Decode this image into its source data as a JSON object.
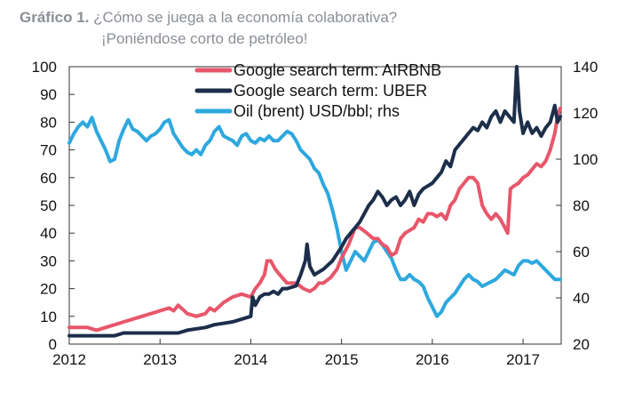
{
  "header": {
    "label": "Gráfico 1.",
    "line1": "¿Cómo se juega a la economía colaborativa?",
    "line2": "¡Poniéndose corto de petróleo!"
  },
  "chart_data": {
    "type": "line",
    "x_ticks": [
      "2012",
      "2013",
      "2014",
      "2015",
      "2016",
      "2017"
    ],
    "xlim": [
      2012.0,
      2017.42
    ],
    "y_left": {
      "ticks": [
        "0",
        "10",
        "20",
        "30",
        "40",
        "50",
        "60",
        "70",
        "80",
        "90",
        "100"
      ],
      "ylim": [
        0,
        100
      ]
    },
    "y_right": {
      "ticks": [
        "20",
        "40",
        "60",
        "80",
        "100",
        "120",
        "140"
      ],
      "ylim": [
        20,
        140
      ]
    },
    "series": [
      {
        "name": "Google search term: AIRBNB",
        "axis": "left",
        "color": "#e8566a",
        "points": [
          [
            2012.0,
            6
          ],
          [
            2012.2,
            6
          ],
          [
            2012.3,
            5
          ],
          [
            2012.4,
            6
          ],
          [
            2012.5,
            7
          ],
          [
            2012.6,
            8
          ],
          [
            2012.8,
            10
          ],
          [
            2012.9,
            11
          ],
          [
            2013.0,
            12
          ],
          [
            2013.1,
            13
          ],
          [
            2013.15,
            12
          ],
          [
            2013.2,
            14
          ],
          [
            2013.3,
            11
          ],
          [
            2013.4,
            10
          ],
          [
            2013.5,
            11
          ],
          [
            2013.55,
            13
          ],
          [
            2013.6,
            12
          ],
          [
            2013.7,
            15
          ],
          [
            2013.8,
            17
          ],
          [
            2013.9,
            18
          ],
          [
            2014.0,
            17
          ],
          [
            2014.05,
            20
          ],
          [
            2014.1,
            22
          ],
          [
            2014.15,
            25
          ],
          [
            2014.18,
            30
          ],
          [
            2014.22,
            30
          ],
          [
            2014.27,
            27
          ],
          [
            2014.32,
            25
          ],
          [
            2014.4,
            22
          ],
          [
            2014.5,
            22
          ],
          [
            2014.58,
            20
          ],
          [
            2014.65,
            19
          ],
          [
            2014.7,
            20
          ],
          [
            2014.75,
            22
          ],
          [
            2014.8,
            22
          ],
          [
            2014.88,
            24
          ],
          [
            2014.95,
            27
          ],
          [
            2015.0,
            31
          ],
          [
            2015.08,
            36
          ],
          [
            2015.15,
            42
          ],
          [
            2015.2,
            42
          ],
          [
            2015.28,
            40
          ],
          [
            2015.35,
            38
          ],
          [
            2015.4,
            38
          ],
          [
            2015.45,
            36
          ],
          [
            2015.5,
            35
          ],
          [
            2015.55,
            32
          ],
          [
            2015.6,
            33
          ],
          [
            2015.65,
            38
          ],
          [
            2015.7,
            40
          ],
          [
            2015.8,
            42
          ],
          [
            2015.85,
            45
          ],
          [
            2015.9,
            44
          ],
          [
            2015.95,
            47
          ],
          [
            2016.0,
            47
          ],
          [
            2016.05,
            46
          ],
          [
            2016.1,
            47
          ],
          [
            2016.15,
            45
          ],
          [
            2016.2,
            50
          ],
          [
            2016.25,
            52
          ],
          [
            2016.3,
            56
          ],
          [
            2016.35,
            58
          ],
          [
            2016.4,
            60
          ],
          [
            2016.45,
            60
          ],
          [
            2016.5,
            58
          ],
          [
            2016.55,
            50
          ],
          [
            2016.6,
            47
          ],
          [
            2016.65,
            45
          ],
          [
            2016.7,
            47
          ],
          [
            2016.75,
            45
          ],
          [
            2016.8,
            42
          ],
          [
            2016.83,
            40
          ],
          [
            2016.86,
            56
          ],
          [
            2016.9,
            57
          ],
          [
            2016.95,
            58
          ],
          [
            2017.0,
            60
          ],
          [
            2017.05,
            61
          ],
          [
            2017.1,
            63
          ],
          [
            2017.15,
            65
          ],
          [
            2017.2,
            64
          ],
          [
            2017.25,
            66
          ],
          [
            2017.3,
            70
          ],
          [
            2017.35,
            76
          ],
          [
            2017.38,
            82
          ],
          [
            2017.41,
            85
          ]
        ]
      },
      {
        "name": "Google search term: UBER",
        "axis": "left",
        "color": "#1c2e4a",
        "points": [
          [
            2012.0,
            3
          ],
          [
            2012.5,
            3
          ],
          [
            2012.6,
            4
          ],
          [
            2013.0,
            4
          ],
          [
            2013.2,
            4
          ],
          [
            2013.3,
            5
          ],
          [
            2013.5,
            6
          ],
          [
            2013.6,
            7
          ],
          [
            2013.8,
            8
          ],
          [
            2013.9,
            9
          ],
          [
            2014.0,
            10
          ],
          [
            2014.02,
            17
          ],
          [
            2014.05,
            14
          ],
          [
            2014.1,
            17
          ],
          [
            2014.15,
            18
          ],
          [
            2014.2,
            18
          ],
          [
            2014.25,
            19
          ],
          [
            2014.3,
            18
          ],
          [
            2014.35,
            20
          ],
          [
            2014.4,
            20
          ],
          [
            2014.5,
            21
          ],
          [
            2014.55,
            25
          ],
          [
            2014.6,
            30
          ],
          [
            2014.62,
            36
          ],
          [
            2014.65,
            28
          ],
          [
            2014.7,
            25
          ],
          [
            2014.8,
            27
          ],
          [
            2014.9,
            30
          ],
          [
            2015.0,
            35
          ],
          [
            2015.05,
            38
          ],
          [
            2015.1,
            40
          ],
          [
            2015.15,
            42
          ],
          [
            2015.2,
            44
          ],
          [
            2015.25,
            47
          ],
          [
            2015.3,
            50
          ],
          [
            2015.35,
            52
          ],
          [
            2015.4,
            55
          ],
          [
            2015.45,
            53
          ],
          [
            2015.5,
            50
          ],
          [
            2015.55,
            52
          ],
          [
            2015.6,
            53
          ],
          [
            2015.65,
            50
          ],
          [
            2015.7,
            52
          ],
          [
            2015.75,
            55
          ],
          [
            2015.8,
            50
          ],
          [
            2015.85,
            54
          ],
          [
            2015.9,
            56
          ],
          [
            2015.95,
            57
          ],
          [
            2016.0,
            58
          ],
          [
            2016.05,
            60
          ],
          [
            2016.1,
            62
          ],
          [
            2016.15,
            66
          ],
          [
            2016.2,
            64
          ],
          [
            2016.25,
            70
          ],
          [
            2016.3,
            72
          ],
          [
            2016.35,
            74
          ],
          [
            2016.4,
            76
          ],
          [
            2016.45,
            78
          ],
          [
            2016.5,
            77
          ],
          [
            2016.55,
            80
          ],
          [
            2016.6,
            78
          ],
          [
            2016.65,
            82
          ],
          [
            2016.7,
            84
          ],
          [
            2016.75,
            80
          ],
          [
            2016.8,
            84
          ],
          [
            2016.85,
            82
          ],
          [
            2016.9,
            80
          ],
          [
            2016.93,
            100
          ],
          [
            2016.96,
            84
          ],
          [
            2017.0,
            76
          ],
          [
            2017.05,
            80
          ],
          [
            2017.1,
            76
          ],
          [
            2017.15,
            78
          ],
          [
            2017.2,
            75
          ],
          [
            2017.25,
            78
          ],
          [
            2017.3,
            80
          ],
          [
            2017.35,
            86
          ],
          [
            2017.38,
            80
          ],
          [
            2017.41,
            82
          ]
        ]
      },
      {
        "name": "Oil (brent) USD/bbl; rhs",
        "axis": "right",
        "color": "#2ea8de",
        "points": [
          [
            2012.0,
            107
          ],
          [
            2012.05,
            111
          ],
          [
            2012.1,
            114
          ],
          [
            2012.15,
            116
          ],
          [
            2012.2,
            114
          ],
          [
            2012.25,
            118
          ],
          [
            2012.3,
            112
          ],
          [
            2012.35,
            108
          ],
          [
            2012.4,
            104
          ],
          [
            2012.45,
            99
          ],
          [
            2012.5,
            100
          ],
          [
            2012.55,
            108
          ],
          [
            2012.6,
            113
          ],
          [
            2012.65,
            117
          ],
          [
            2012.7,
            113
          ],
          [
            2012.75,
            112
          ],
          [
            2012.8,
            110
          ],
          [
            2012.85,
            108
          ],
          [
            2012.9,
            110
          ],
          [
            2012.95,
            111
          ],
          [
            2013.0,
            113
          ],
          [
            2013.05,
            116
          ],
          [
            2013.1,
            117
          ],
          [
            2013.15,
            111
          ],
          [
            2013.2,
            108
          ],
          [
            2013.25,
            105
          ],
          [
            2013.3,
            103
          ],
          [
            2013.35,
            102
          ],
          [
            2013.4,
            104
          ],
          [
            2013.45,
            102
          ],
          [
            2013.5,
            106
          ],
          [
            2013.55,
            108
          ],
          [
            2013.6,
            112
          ],
          [
            2013.65,
            114
          ],
          [
            2013.7,
            110
          ],
          [
            2013.75,
            109
          ],
          [
            2013.8,
            108
          ],
          [
            2013.85,
            106
          ],
          [
            2013.9,
            110
          ],
          [
            2013.95,
            111
          ],
          [
            2014.0,
            108
          ],
          [
            2014.05,
            107
          ],
          [
            2014.1,
            109
          ],
          [
            2014.15,
            108
          ],
          [
            2014.2,
            110
          ],
          [
            2014.25,
            108
          ],
          [
            2014.3,
            108
          ],
          [
            2014.35,
            110
          ],
          [
            2014.4,
            112
          ],
          [
            2014.45,
            111
          ],
          [
            2014.5,
            108
          ],
          [
            2014.55,
            104
          ],
          [
            2014.6,
            102
          ],
          [
            2014.65,
            100
          ],
          [
            2014.7,
            96
          ],
          [
            2014.75,
            94
          ],
          [
            2014.8,
            89
          ],
          [
            2014.85,
            85
          ],
          [
            2014.9,
            78
          ],
          [
            2014.95,
            70
          ],
          [
            2015.0,
            60
          ],
          [
            2015.05,
            52
          ],
          [
            2015.1,
            56
          ],
          [
            2015.15,
            60
          ],
          [
            2015.2,
            58
          ],
          [
            2015.25,
            56
          ],
          [
            2015.3,
            60
          ],
          [
            2015.35,
            64
          ],
          [
            2015.4,
            65
          ],
          [
            2015.45,
            63
          ],
          [
            2015.5,
            60
          ],
          [
            2015.55,
            57
          ],
          [
            2015.6,
            52
          ],
          [
            2015.65,
            48
          ],
          [
            2015.7,
            48
          ],
          [
            2015.75,
            50
          ],
          [
            2015.8,
            48
          ],
          [
            2015.85,
            47
          ],
          [
            2015.9,
            45
          ],
          [
            2015.95,
            40
          ],
          [
            2016.0,
            36
          ],
          [
            2016.05,
            32
          ],
          [
            2016.1,
            34
          ],
          [
            2016.15,
            38
          ],
          [
            2016.2,
            40
          ],
          [
            2016.25,
            42
          ],
          [
            2016.3,
            45
          ],
          [
            2016.35,
            48
          ],
          [
            2016.4,
            50
          ],
          [
            2016.45,
            48
          ],
          [
            2016.5,
            47
          ],
          [
            2016.55,
            45
          ],
          [
            2016.6,
            46
          ],
          [
            2016.65,
            47
          ],
          [
            2016.7,
            48
          ],
          [
            2016.75,
            50
          ],
          [
            2016.8,
            52
          ],
          [
            2016.85,
            51
          ],
          [
            2016.9,
            50
          ],
          [
            2016.95,
            54
          ],
          [
            2017.0,
            56
          ],
          [
            2017.05,
            56
          ],
          [
            2017.1,
            55
          ],
          [
            2017.15,
            56
          ],
          [
            2017.2,
            54
          ],
          [
            2017.25,
            52
          ],
          [
            2017.3,
            50
          ],
          [
            2017.35,
            48
          ],
          [
            2017.41,
            48
          ]
        ]
      }
    ],
    "legend": [
      "Google search term: AIRBNB",
      "Google search term: UBER",
      "Oil (brent) USD/bbl; rhs"
    ],
    "legend_position": "top-center",
    "grid": false
  }
}
